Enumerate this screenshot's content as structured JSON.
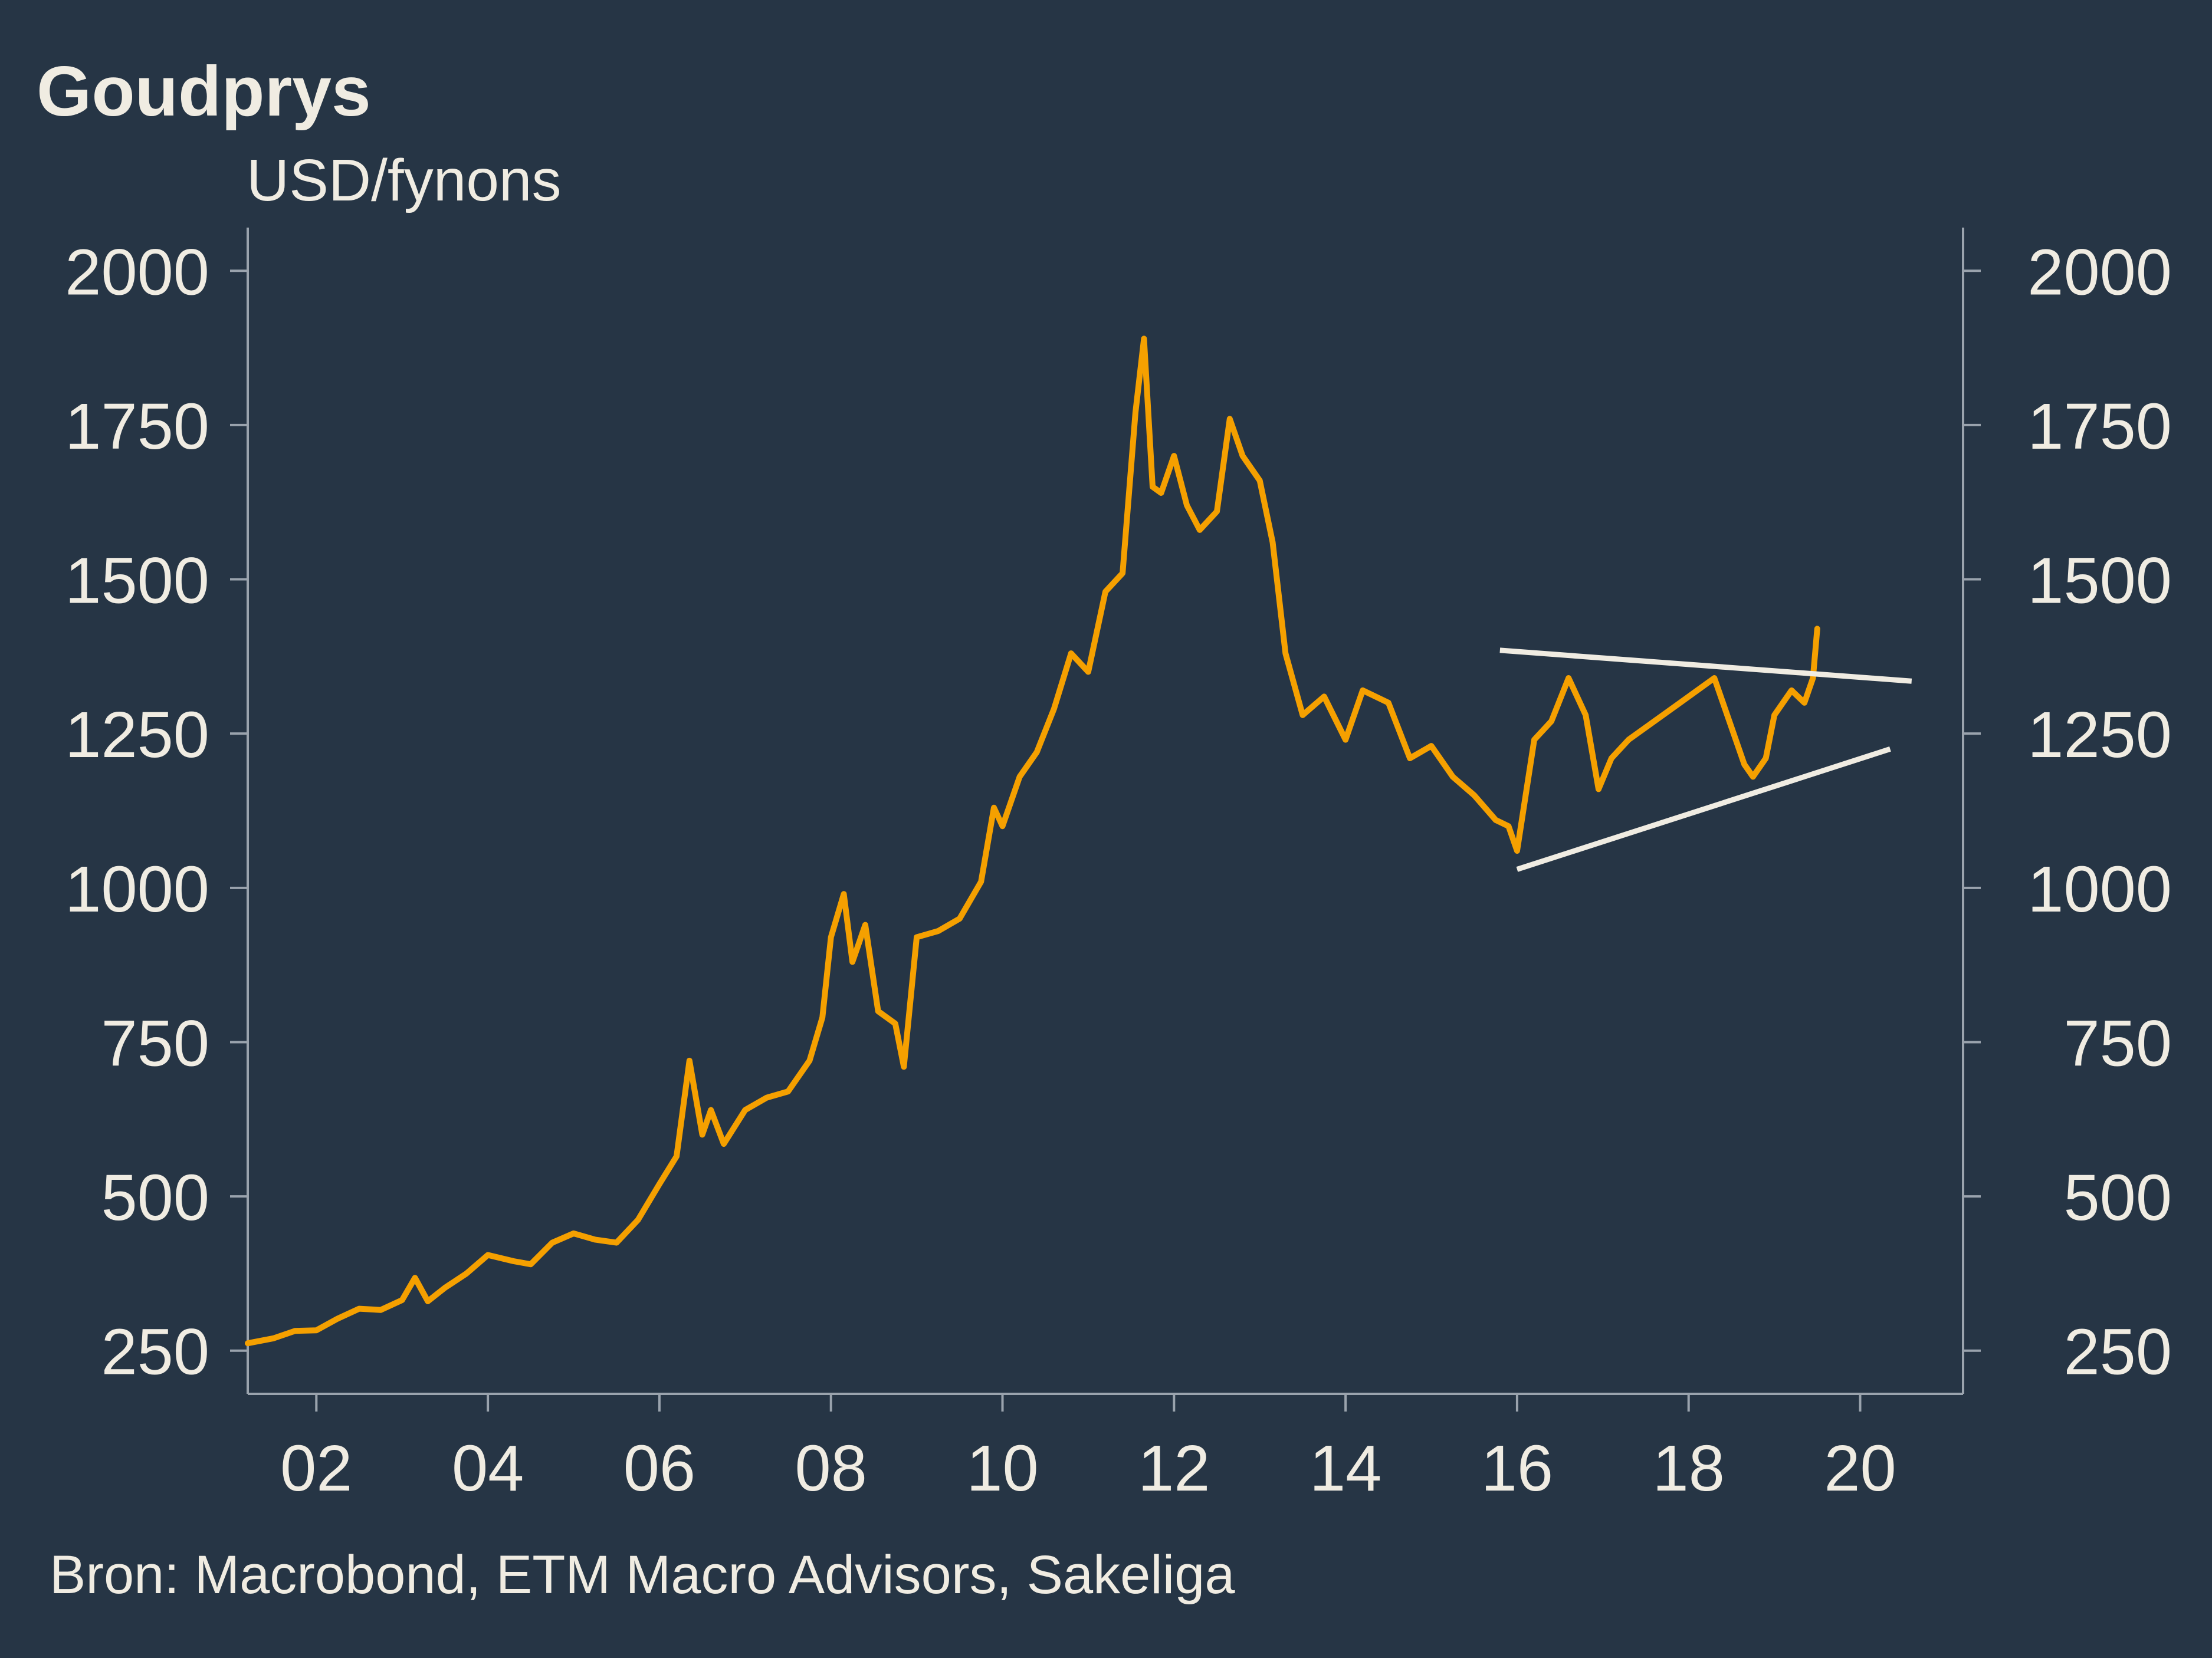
{
  "chart_data": {
    "type": "line",
    "title": "Goudprys",
    "ylabel": "USD/fynons",
    "source": "Bron: Macrobond, ETM Macro Advisors, Sakeliga",
    "xlim": [
      2001.2,
      2021.2
    ],
    "ylim": [
      180,
      2070
    ],
    "yticks": [
      250,
      500,
      750,
      1000,
      1250,
      1500,
      1750,
      2000
    ],
    "ytick_labels": [
      "250",
      "500",
      "750",
      "1000",
      "1250",
      "1500",
      "1750",
      "2000"
    ],
    "xticks": [
      2002,
      2004,
      2006,
      2008,
      2010,
      2012,
      2014,
      2016,
      2018,
      2020
    ],
    "xtick_labels": [
      "02",
      "04",
      "06",
      "08",
      "10",
      "12",
      "14",
      "16",
      "18",
      "20"
    ],
    "grid": false,
    "series": [
      {
        "name": "Goudprys",
        "color": "#f5a000",
        "x": [
          2001.2,
          2001.5,
          2001.75,
          2002.0,
          2002.25,
          2002.5,
          2002.75,
          2003.0,
          2003.15,
          2003.3,
          2003.5,
          2003.75,
          2004.0,
          2004.3,
          2004.5,
          2004.75,
          2005.0,
          2005.25,
          2005.5,
          2005.75,
          2006.0,
          2006.2,
          2006.35,
          2006.5,
          2006.6,
          2006.75,
          2007.0,
          2007.25,
          2007.5,
          2007.75,
          2007.9,
          2008.0,
          2008.15,
          2008.25,
          2008.4,
          2008.55,
          2008.75,
          2008.85,
          2009.0,
          2009.25,
          2009.5,
          2009.75,
          2009.9,
          2010.0,
          2010.2,
          2010.4,
          2010.6,
          2010.8,
          2011.0,
          2011.2,
          2011.4,
          2011.55,
          2011.65,
          2011.75,
          2011.85,
          2012.0,
          2012.15,
          2012.3,
          2012.5,
          2012.65,
          2012.8,
          2013.0,
          2013.15,
          2013.3,
          2013.5,
          2013.75,
          2014.0,
          2014.2,
          2014.5,
          2014.75,
          2015.0,
          2015.25,
          2015.5,
          2015.75,
          2015.9,
          2016.0,
          2016.2,
          2016.4,
          2016.6,
          2016.8,
          2016.95,
          2017.1,
          2017.3,
          2017.5,
          2017.7,
          2017.9,
          2018.1,
          2018.3,
          2018.5,
          2018.65,
          2018.75,
          2018.9,
          2019.0,
          2019.2,
          2019.35,
          2019.45,
          2019.5
        ],
        "values": [
          262,
          270,
          282,
          283,
          302,
          318,
          316,
          332,
          368,
          330,
          352,
          375,
          405,
          395,
          390,
          425,
          440,
          430,
          425,
          462,
          520,
          565,
          720,
          600,
          640,
          585,
          640,
          660,
          670,
          720,
          790,
          920,
          990,
          880,
          940,
          800,
          780,
          710,
          920,
          930,
          950,
          1010,
          1130,
          1100,
          1180,
          1220,
          1290,
          1380,
          1350,
          1480,
          1510,
          1770,
          1890,
          1650,
          1640,
          1700,
          1620,
          1580,
          1610,
          1760,
          1700,
          1660,
          1560,
          1380,
          1280,
          1310,
          1240,
          1320,
          1300,
          1210,
          1230,
          1180,
          1150,
          1110,
          1100,
          1060,
          1240,
          1270,
          1340,
          1280,
          1160,
          1210,
          1240,
          1260,
          1280,
          1300,
          1320,
          1340,
          1260,
          1200,
          1180,
          1210,
          1280,
          1320,
          1300,
          1340,
          1420
        ]
      }
    ],
    "trendlines": [
      {
        "name": "upper-trendline",
        "color": "#f0ece2",
        "x": [
          2015.8,
          2020.6
        ],
        "values": [
          1385,
          1335
        ]
      },
      {
        "name": "lower-trendline",
        "color": "#f0ece2",
        "x": [
          2016.0,
          2020.35
        ],
        "values": [
          1030,
          1225
        ]
      }
    ]
  }
}
